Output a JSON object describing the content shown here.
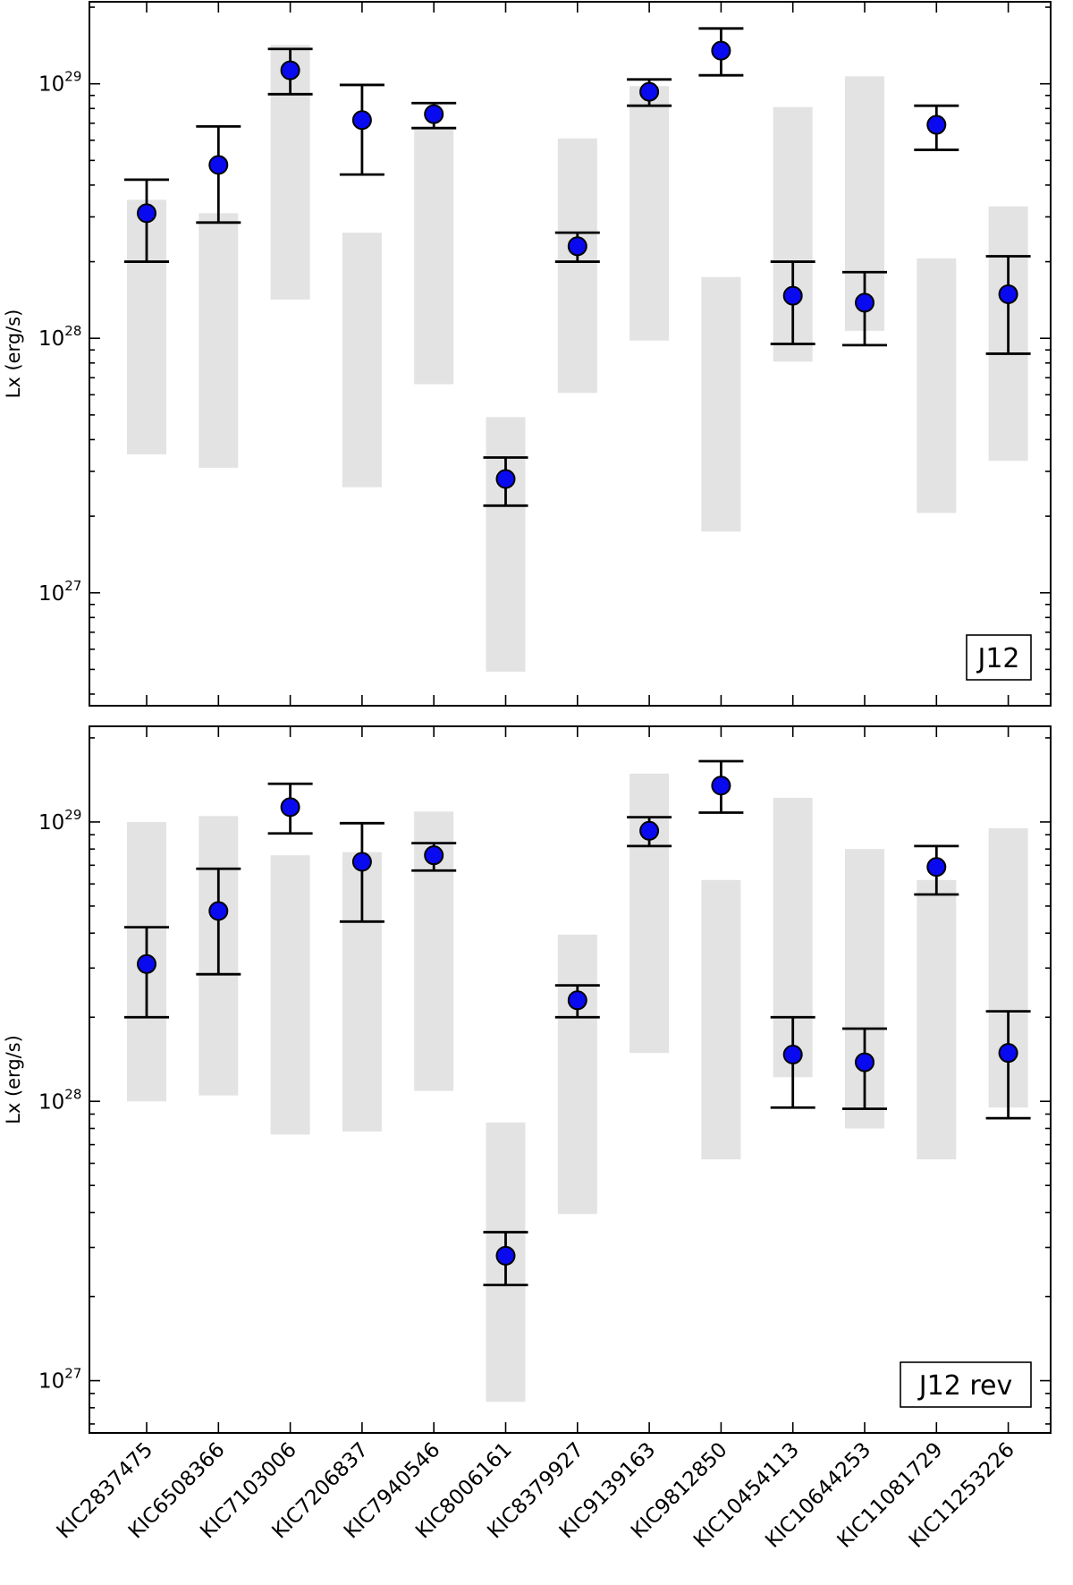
{
  "chart_data": {
    "type": "scatter",
    "y_scale": "log",
    "ylabel": "Lx (erg/s)",
    "categories": [
      "KIC2837475",
      "KIC6508366",
      "KIC7103006",
      "KIC7206837",
      "KIC7940546",
      "KIC8006161",
      "KIC8379927",
      "KIC9139163",
      "KIC9812850",
      "KIC10454113",
      "KIC10644253",
      "KIC11081729",
      "KIC11253226"
    ],
    "observed": {
      "values": [
        3.1e+28,
        4.8e+28,
        1.13e+29,
        7.2e+28,
        7.6e+28,
        2.8e+27,
        2.3e+28,
        9.3e+28,
        1.35e+29,
        1.47e+28,
        1.38e+28,
        6.9e+28,
        1.49e+28
      ],
      "err_low": [
        2e+28,
        2.85e+28,
        9.1e+28,
        4.4e+28,
        6.7e+28,
        2.2e+27,
        2e+28,
        8.2e+28,
        1.08e+29,
        9.5e+27,
        9.4e+27,
        5.5e+28,
        8.7e+27
      ],
      "err_high": [
        4.2e+28,
        6.8e+28,
        1.37e+29,
        9.9e+28,
        8.4e+28,
        3.4e+27,
        2.6e+28,
        1.04e+29,
        1.65e+29,
        2e+28,
        1.82e+28,
        8.2e+28,
        2.1e+28
      ]
    },
    "panels": [
      {
        "label": "J12",
        "ylim": [
          3.6e+26,
          2.1e+29
        ],
        "yticks": [
          {
            "base": "10",
            "exp": "27",
            "value": 1e+27
          },
          {
            "base": "10",
            "exp": "28",
            "value": 1e+28
          },
          {
            "base": "10",
            "exp": "29",
            "value": 1e+29
          }
        ],
        "band_low": [
          3.5e+27,
          3.1e+27,
          1.42e+28,
          2.6e+27,
          6.6e+27,
          4.9e+26,
          6.1e+27,
          9.8e+27,
          1.74e+27,
          8.1e+27,
          1.07e+28,
          2.06e+27,
          3.3e+27
        ],
        "band_high": [
          3.5e+28,
          3.1e+28,
          1.42e+29,
          2.6e+28,
          6.6e+28,
          4.9e+27,
          6.1e+28,
          9.8e+28,
          1.74e+28,
          8.1e+28,
          1.07e+29,
          2.06e+28,
          3.3e+28
        ]
      },
      {
        "label": "J12 rev",
        "ylim": [
          6.5e+26,
          2.2e+29
        ],
        "yticks": [
          {
            "base": "10",
            "exp": "27",
            "value": 1e+27
          },
          {
            "base": "10",
            "exp": "28",
            "value": 1e+28
          },
          {
            "base": "10",
            "exp": "29",
            "value": 1e+29
          }
        ],
        "band_low": [
          1e+28,
          1.05e+28,
          7.6e+27,
          7.8e+27,
          1.09e+28,
          8.4e+26,
          3.95e+27,
          1.49e+28,
          6.2e+27,
          1.22e+28,
          8e+27,
          6.2e+27,
          9.5e+27
        ],
        "band_high": [
          1e+29,
          1.05e+29,
          7.6e+28,
          7.8e+28,
          1.09e+29,
          8.4e+27,
          3.95e+28,
          1.49e+29,
          6.2e+28,
          1.22e+29,
          8e+28,
          6.2e+28,
          9.5e+28
        ]
      }
    ]
  }
}
